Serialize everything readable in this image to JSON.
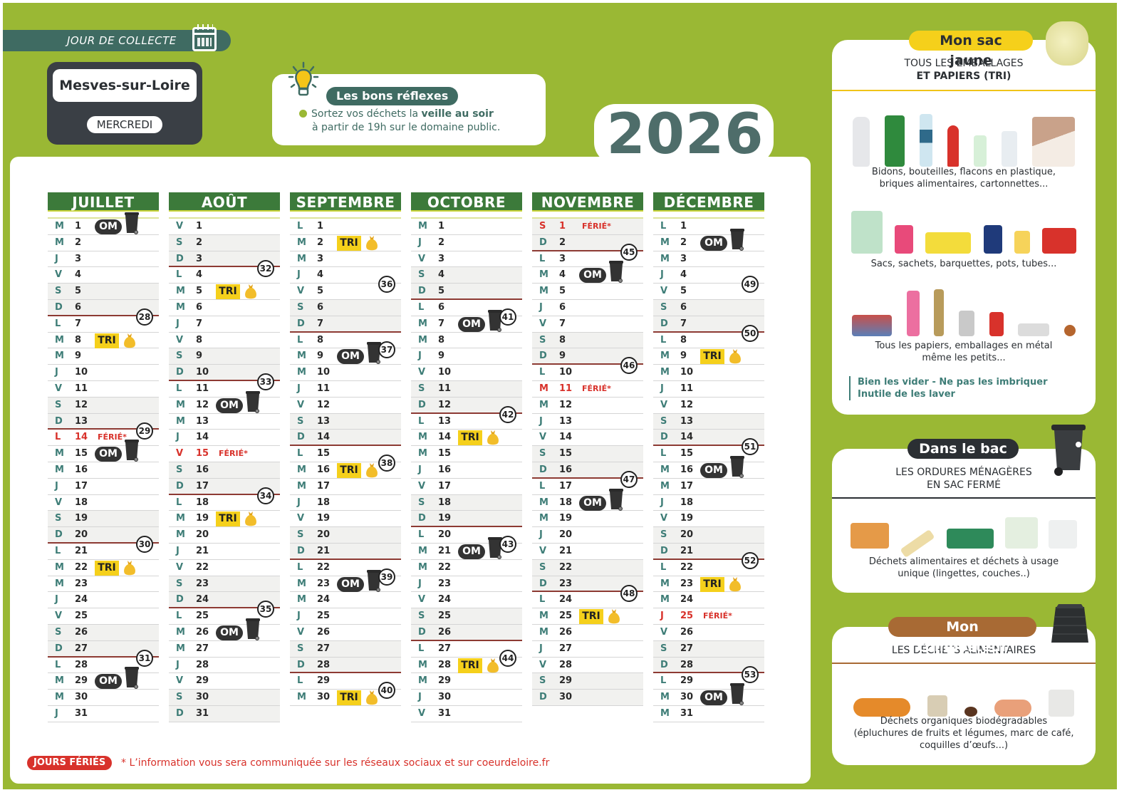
{
  "header": {
    "collecte_label": "JOUR DE COLLECTE",
    "town": "Mesves-sur-Loire",
    "day": "MERCREDI",
    "year": "2026"
  },
  "reflexes": {
    "title": "Les bons réflexes",
    "line1_pre": "Sortez vos déchets la ",
    "line1_bold": "veille au soir",
    "line2": "à partir de 19h sur le domaine public."
  },
  "legend": {
    "om_label": "OM",
    "tri_label": "TRI",
    "ferie_label": "FÉRIÉ*"
  },
  "months": [
    {
      "name": "JUILLET",
      "first_dow": 2,
      "days": 31,
      "om": [
        1,
        15,
        29
      ],
      "tri": [
        8,
        22
      ],
      "holidays": [
        14
      ],
      "weeks": [
        {
          "n": "28",
          "row": 6
        },
        {
          "n": "29",
          "row": 13
        },
        {
          "n": "30",
          "row": 20
        },
        {
          "n": "31",
          "row": 27
        }
      ]
    },
    {
      "name": "AOÛT",
      "first_dow": 5,
      "days": 31,
      "om": [
        12,
        26
      ],
      "tri": [
        5,
        19
      ],
      "holidays": [
        15
      ],
      "weeks": [
        {
          "n": "32",
          "row": 3
        },
        {
          "n": "33",
          "row": 10
        },
        {
          "n": "34",
          "row": 17
        },
        {
          "n": "35",
          "row": 24
        }
      ]
    },
    {
      "name": "SEPTEMBRE",
      "first_dow": 1,
      "days": 30,
      "om": [
        9,
        23
      ],
      "tri": [
        2,
        16,
        30
      ],
      "holidays": [],
      "weeks": [
        {
          "n": "36",
          "row": 4
        },
        {
          "n": "37",
          "row": 8
        },
        {
          "n": "38",
          "row": 15
        },
        {
          "n": "39",
          "row": 22
        },
        {
          "n": "40",
          "row": 29
        }
      ]
    },
    {
      "name": "OCTOBRE",
      "first_dow": 3,
      "days": 31,
      "om": [
        7,
        21
      ],
      "tri": [
        14,
        28
      ],
      "holidays": [],
      "weeks": [
        {
          "n": "41",
          "row": 6
        },
        {
          "n": "42",
          "row": 12
        },
        {
          "n": "43",
          "row": 20
        },
        {
          "n": "44",
          "row": 27
        }
      ]
    },
    {
      "name": "NOVEMBRE",
      "first_dow": 6,
      "days": 30,
      "om": [
        4,
        18
      ],
      "tri": [
        25
      ],
      "holidays": [
        1,
        11
      ],
      "weeks": [
        {
          "n": "45",
          "row": 2
        },
        {
          "n": "46",
          "row": 9
        },
        {
          "n": "47",
          "row": 16
        },
        {
          "n": "48",
          "row": 23
        }
      ]
    },
    {
      "name": "DÉCEMBRE",
      "first_dow": 1,
      "days": 31,
      "om": [
        2,
        16,
        30
      ],
      "tri": [
        9,
        23
      ],
      "holidays": [
        25
      ],
      "weeks": [
        {
          "n": "49",
          "row": 4
        },
        {
          "n": "50",
          "row": 7
        },
        {
          "n": "51",
          "row": 14
        },
        {
          "n": "52",
          "row": 21
        },
        {
          "n": "53",
          "row": 28
        }
      ]
    }
  ],
  "day_letters": [
    "L",
    "M",
    "M",
    "J",
    "V",
    "S",
    "D"
  ],
  "footer": {
    "tag": "JOURS FÉRIÉS",
    "text": "* L’information vous sera communiquée sur les réseaux sociaux et sur coeurdeloire.fr"
  },
  "cards": {
    "sac_jaune": {
      "title": "Mon sac jaune",
      "subtitle_line1": "TOUS LES EMBALLAGES",
      "subtitle_line2": "ET PAPIERS (TRI)",
      "caption1_line1": "Bidons, bouteilles, flacons en plastique,",
      "caption1_line2": "briques alimentaires, cartonnettes...",
      "caption2": "Sacs, sachets, barquettes, pots, tubes...",
      "caption3_line1": "Tous les papiers, emballages en métal",
      "caption3_line2": "même les petits...",
      "tip_line1": "Bien les vider - Ne pas les imbriquer",
      "tip_line2": "Inutile de les laver"
    },
    "bac": {
      "title": "Dans le bac",
      "subtitle_line1": "LES ORDURES MÉNAGÈRES",
      "subtitle_line2": "EN SAC FERMÉ",
      "caption_line1": "Déchets alimentaires et déchets à usage",
      "caption_line2": "unique (lingettes, couches..)"
    },
    "composteur": {
      "title": "Mon composteur",
      "subtitle": "LES DÉCHETS ALIMENTAIRES",
      "caption_line1": "Déchets organiques biodégradables",
      "caption_line2": "(épluchures de fruits et légumes, marc de café,",
      "caption_line3": "coquilles d’œufs...)"
    }
  },
  "colors": {
    "background_green": "#9ab834",
    "month_header": "#3c7a3a",
    "teal": "#3e7d77",
    "holiday_red": "#d8322b",
    "tri_yellow": "#f5d01b",
    "om_dark": "#333333",
    "compost_brown": "#a86a34"
  }
}
